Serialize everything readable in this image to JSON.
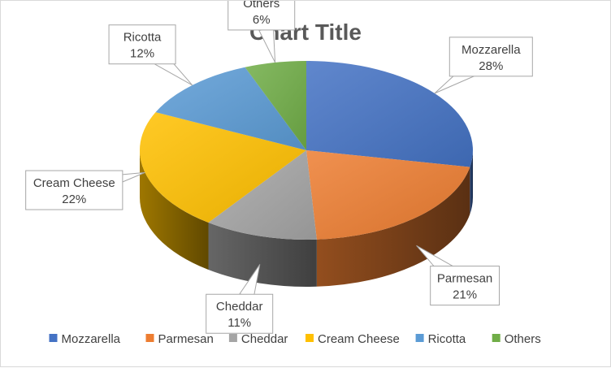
{
  "chart_data": {
    "type": "pie",
    "title": "Chart Title",
    "three_d": true,
    "legend_position": "bottom",
    "slices": [
      {
        "name": "Mozzarella",
        "value": 28,
        "label": "28%",
        "color": "#4472C4"
      },
      {
        "name": "Parmesan",
        "value": 21,
        "label": "21%",
        "color": "#ED7D31"
      },
      {
        "name": "Cheddar",
        "value": 11,
        "label": "11%",
        "color": "#A5A5A5"
      },
      {
        "name": "Cream Cheese",
        "value": 22,
        "label": "22%",
        "color": "#FFC000"
      },
      {
        "name": "Ricotta",
        "value": 12,
        "label": "12%",
        "color": "#5B9BD5"
      },
      {
        "name": "Others",
        "value": 6,
        "label": "6%",
        "color": "#70AD47"
      }
    ]
  }
}
